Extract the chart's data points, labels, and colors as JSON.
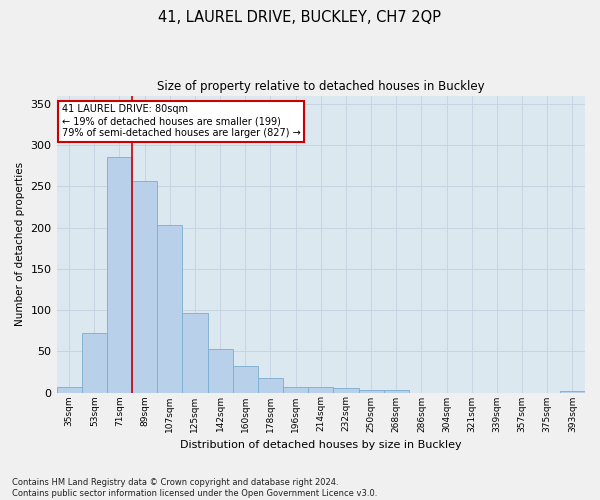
{
  "title": "41, LAUREL DRIVE, BUCKLEY, CH7 2QP",
  "subtitle": "Size of property relative to detached houses in Buckley",
  "xlabel": "Distribution of detached houses by size in Buckley",
  "ylabel": "Number of detached properties",
  "footnote": "Contains HM Land Registry data © Crown copyright and database right 2024.\nContains public sector information licensed under the Open Government Licence v3.0.",
  "categories": [
    "35sqm",
    "53sqm",
    "71sqm",
    "89sqm",
    "107sqm",
    "125sqm",
    "142sqm",
    "160sqm",
    "178sqm",
    "196sqm",
    "214sqm",
    "232sqm",
    "250sqm",
    "268sqm",
    "286sqm",
    "304sqm",
    "321sqm",
    "339sqm",
    "357sqm",
    "375sqm",
    "393sqm"
  ],
  "values": [
    7,
    72,
    286,
    257,
    203,
    96,
    53,
    32,
    18,
    7,
    7,
    5,
    3,
    3,
    0,
    0,
    0,
    0,
    0,
    0,
    2
  ],
  "bar_color": "#b8d0ea",
  "bar_edge_color": "#7aaed0",
  "annotation_text_line1": "41 LAUREL DRIVE: 80sqm",
  "annotation_text_line2": "← 19% of detached houses are smaller (199)",
  "annotation_text_line3": "79% of semi-detached houses are larger (827) →",
  "annotation_box_color": "#ffffff",
  "annotation_box_edge_color": "#cc0000",
  "red_line_color": "#cc0000",
  "grid_color": "#c8d4e4",
  "background_color": "#dce8f0",
  "ylim": [
    0,
    360
  ],
  "yticks": [
    0,
    50,
    100,
    150,
    200,
    250,
    300,
    350
  ]
}
